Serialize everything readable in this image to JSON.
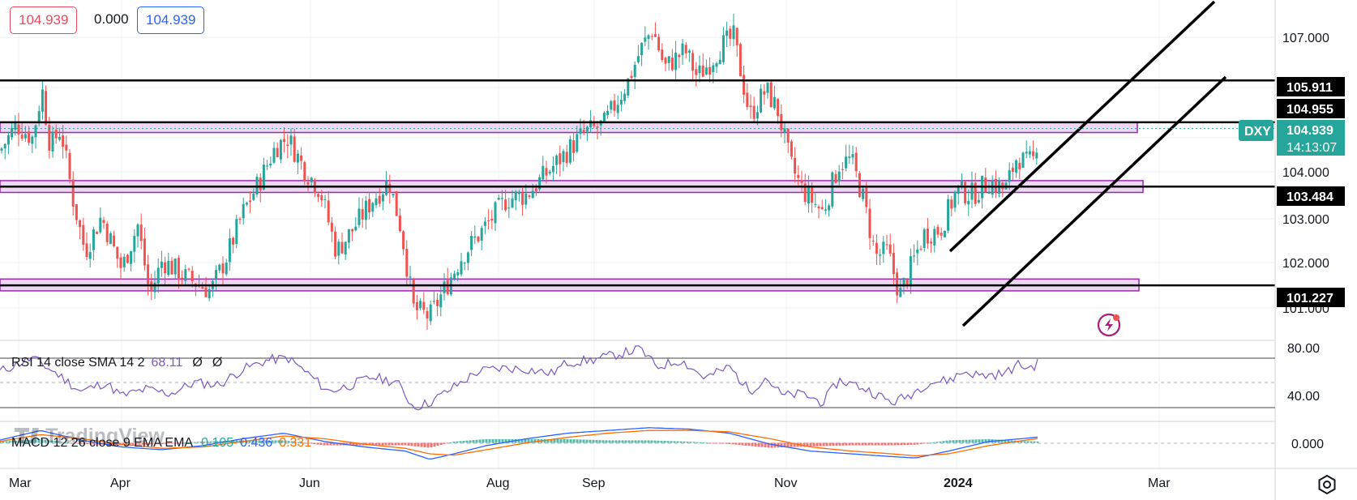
{
  "header": {
    "open_value": "104.939",
    "change_value": "0.000",
    "close_value": "104.939",
    "open_color": "#e84a5f",
    "close_color": "#2962ff"
  },
  "chart_data": {
    "type": "candlestick",
    "symbol": "DXY",
    "last_price": "104.939",
    "countdown": "14:13:07",
    "price_axis": {
      "range": [
        100.45,
        107.75
      ],
      "ticks": [
        "107.000",
        "104.000",
        "103.000",
        "102.000",
        "101.000"
      ]
    },
    "time_axis": {
      "labels": [
        "Mar",
        "Apr",
        "Jun",
        "Aug",
        "Sep",
        "Nov",
        "2024",
        "Mar"
      ]
    },
    "horizontal_levels": [
      {
        "value": 105.911,
        "label": "105.911"
      },
      {
        "value": 104.955,
        "label": "104.955"
      },
      {
        "value": 103.484,
        "label": "103.484"
      },
      {
        "value": 101.227,
        "label": "101.227"
      }
    ],
    "zones": [
      {
        "from": 104.72,
        "to": 104.95
      },
      {
        "from": 103.35,
        "to": 103.62
      },
      {
        "from": 101.1,
        "to": 101.37
      }
    ],
    "price_path": [
      [
        0,
        104.3
      ],
      [
        20,
        104.9
      ],
      [
        40,
        104.6
      ],
      [
        52,
        105.7
      ],
      [
        62,
        104.4
      ],
      [
        75,
        104.8
      ],
      [
        90,
        103.2
      ],
      [
        105,
        102.0
      ],
      [
        125,
        102.8
      ],
      [
        150,
        101.6
      ],
      [
        170,
        102.6
      ],
      [
        185,
        101.0
      ],
      [
        200,
        101.8
      ],
      [
        230,
        101.4
      ],
      [
        260,
        101.1
      ],
      [
        280,
        101.9
      ],
      [
        300,
        102.9
      ],
      [
        320,
        103.6
      ],
      [
        340,
        104.4
      ],
      [
        355,
        104.6
      ],
      [
        375,
        103.9
      ],
      [
        395,
        103.4
      ],
      [
        415,
        102.0
      ],
      [
        435,
        102.5
      ],
      [
        460,
        103.2
      ],
      [
        480,
        103.6
      ],
      [
        495,
        102.5
      ],
      [
        510,
        100.7
      ],
      [
        530,
        100.5
      ],
      [
        550,
        101.2
      ],
      [
        570,
        101.9
      ],
      [
        600,
        102.6
      ],
      [
        625,
        103.2
      ],
      [
        650,
        103.3
      ],
      [
        680,
        103.9
      ],
      [
        700,
        104.3
      ],
      [
        720,
        104.7
      ],
      [
        745,
        104.9
      ],
      [
        775,
        105.9
      ],
      [
        790,
        106.6
      ],
      [
        805,
        107.1
      ],
      [
        820,
        106.2
      ],
      [
        845,
        106.6
      ],
      [
        860,
        106.0
      ],
      [
        875,
        106.3
      ],
      [
        890,
        106.7
      ],
      [
        905,
        106.9
      ],
      [
        925,
        105.1
      ],
      [
        945,
        105.7
      ],
      [
        960,
        105.2
      ],
      [
        975,
        104.0
      ],
      [
        990,
        103.4
      ],
      [
        1015,
        102.9
      ],
      [
        1035,
        104.0
      ],
      [
        1050,
        104.1
      ],
      [
        1065,
        103.2
      ],
      [
        1080,
        101.9
      ],
      [
        1095,
        102.0
      ],
      [
        1110,
        101.0
      ],
      [
        1125,
        101.7
      ],
      [
        1140,
        102.4
      ],
      [
        1160,
        102.5
      ],
      [
        1180,
        103.4
      ],
      [
        1200,
        103.3
      ],
      [
        1220,
        103.6
      ],
      [
        1240,
        103.4
      ],
      [
        1255,
        104.2
      ],
      [
        1265,
        104.0
      ],
      [
        1275,
        104.1
      ],
      [
        1283,
        104.94
      ]
    ],
    "rsi": {
      "label": "RSI 14 close SMA 14 2",
      "value": "68.11",
      "extra1": "Ø",
      "extra2": "Ø",
      "axis_ticks": [
        "80.00",
        "40.00"
      ],
      "range": [
        16,
        87
      ],
      "upper": 70,
      "middle": 50,
      "lower": 30,
      "path": [
        [
          0,
          60
        ],
        [
          40,
          72
        ],
        [
          70,
          58
        ],
        [
          100,
          42
        ],
        [
          130,
          50
        ],
        [
          150,
          38
        ],
        [
          180,
          44
        ],
        [
          210,
          40
        ],
        [
          240,
          50
        ],
        [
          270,
          48
        ],
        [
          300,
          62
        ],
        [
          330,
          70
        ],
        [
          355,
          72
        ],
        [
          380,
          58
        ],
        [
          405,
          42
        ],
        [
          430,
          47
        ],
        [
          460,
          55
        ],
        [
          490,
          50
        ],
        [
          510,
          28
        ],
        [
          530,
          32
        ],
        [
          560,
          46
        ],
        [
          590,
          60
        ],
        [
          620,
          63
        ],
        [
          650,
          62
        ],
        [
          680,
          58
        ],
        [
          700,
          68
        ],
        [
          730,
          70
        ],
        [
          760,
          75
        ],
        [
          790,
          80
        ],
        [
          810,
          64
        ],
        [
          840,
          70
        ],
        [
          870,
          54
        ],
        [
          900,
          64
        ],
        [
          925,
          42
        ],
        [
          945,
          55
        ],
        [
          965,
          38
        ],
        [
          990,
          40
        ],
        [
          1015,
          32
        ],
        [
          1035,
          52
        ],
        [
          1055,
          48
        ],
        [
          1075,
          42
        ],
        [
          1100,
          32
        ],
        [
          1120,
          38
        ],
        [
          1145,
          50
        ],
        [
          1170,
          52
        ],
        [
          1190,
          60
        ],
        [
          1210,
          56
        ],
        [
          1240,
          58
        ],
        [
          1255,
          66
        ],
        [
          1270,
          63
        ],
        [
          1283,
          68
        ]
      ]
    },
    "macd": {
      "label": "MACD 12 26 close 9 EMA EMA",
      "histogram": "0.105",
      "macd": "0.436",
      "signal": "0.331",
      "axis_tick": "0.000",
      "range": [
        -1.8,
        1.5
      ],
      "path_macd": [
        [
          0,
          0.2
        ],
        [
          50,
          0.9
        ],
        [
          100,
          0.2
        ],
        [
          150,
          -0.3
        ],
        [
          200,
          -0.5
        ],
        [
          250,
          -0.2
        ],
        [
          300,
          0.3
        ],
        [
          350,
          0.7
        ],
        [
          400,
          0.1
        ],
        [
          450,
          -0.3
        ],
        [
          500,
          -0.6
        ],
        [
          530,
          -1.2
        ],
        [
          560,
          -0.8
        ],
        [
          600,
          -0.2
        ],
        [
          650,
          0.3
        ],
        [
          700,
          0.7
        ],
        [
          750,
          0.9
        ],
        [
          800,
          1.1
        ],
        [
          850,
          1.0
        ],
        [
          900,
          0.7
        ],
        [
          950,
          -0.1
        ],
        [
          1000,
          -0.6
        ],
        [
          1050,
          -0.8
        ],
        [
          1100,
          -1.0
        ],
        [
          1130,
          -1.1
        ],
        [
          1170,
          -0.6
        ],
        [
          1220,
          0.1
        ],
        [
          1260,
          0.3
        ],
        [
          1283,
          0.436
        ]
      ],
      "path_signal": [
        [
          0,
          0.1
        ],
        [
          50,
          0.6
        ],
        [
          100,
          0.3
        ],
        [
          150,
          -0.1
        ],
        [
          200,
          -0.4
        ],
        [
          250,
          -0.3
        ],
        [
          300,
          0.1
        ],
        [
          350,
          0.5
        ],
        [
          400,
          0.3
        ],
        [
          450,
          -0.1
        ],
        [
          500,
          -0.4
        ],
        [
          530,
          -0.8
        ],
        [
          560,
          -0.9
        ],
        [
          600,
          -0.5
        ],
        [
          650,
          0.0
        ],
        [
          700,
          0.4
        ],
        [
          750,
          0.7
        ],
        [
          800,
          0.9
        ],
        [
          850,
          0.9
        ],
        [
          900,
          0.8
        ],
        [
          950,
          0.3
        ],
        [
          1000,
          -0.3
        ],
        [
          1050,
          -0.6
        ],
        [
          1100,
          -0.8
        ],
        [
          1130,
          -0.95
        ],
        [
          1170,
          -0.8
        ],
        [
          1220,
          -0.2
        ],
        [
          1260,
          0.15
        ],
        [
          1283,
          0.331
        ]
      ]
    },
    "watermark": "TradingView"
  },
  "colors": {
    "up": "#26a69a",
    "down": "#ef5350",
    "zone_fill": "#ecd8f2",
    "zone_stroke": "#9c27b0",
    "rsi_line": "#7e57c2",
    "macd_line": "#2962ff",
    "signal_line": "#ff6d00",
    "dxy_bg": "#26a69a",
    "level_bg": "#000000",
    "lightning": "#ab1d7a"
  }
}
